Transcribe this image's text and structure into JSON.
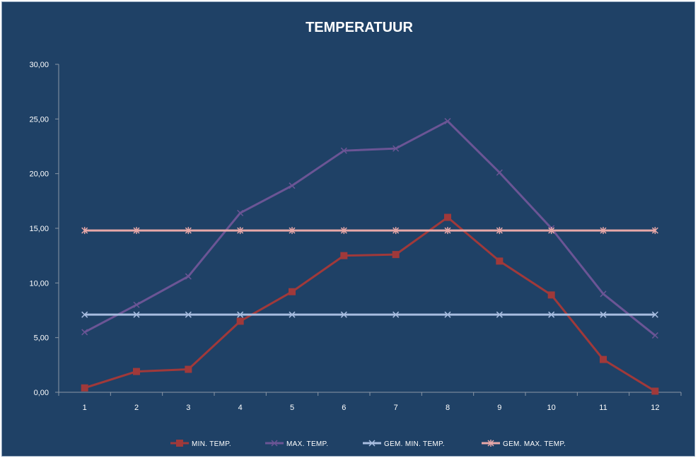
{
  "chart_data": {
    "type": "line",
    "title": "TEMPERATUUR",
    "x": [
      1,
      2,
      3,
      4,
      5,
      6,
      7,
      8,
      9,
      10,
      11,
      12
    ],
    "x_tick_labels": [
      "1",
      "2",
      "3",
      "4",
      "5",
      "6",
      "7",
      "8",
      "9",
      "10",
      "11",
      "12"
    ],
    "ylim": [
      0,
      30
    ],
    "y_tick_labels": [
      "0,00",
      "5,00",
      "10,00",
      "15,00",
      "20,00",
      "25,00",
      "30,00"
    ],
    "y_ticks": [
      0,
      5,
      10,
      15,
      20,
      25,
      30
    ],
    "grid": false,
    "legend_position": "bottom",
    "series": [
      {
        "name": "MIN. TEMP.",
        "color": "#a0393a",
        "marker": "square",
        "values": [
          0.4,
          1.9,
          2.1,
          6.5,
          9.2,
          12.5,
          12.6,
          16.0,
          12.0,
          8.9,
          3.0,
          0.1
        ]
      },
      {
        "name": "MAX. TEMP.",
        "color": "#6b5595",
        "marker": "x",
        "values": [
          5.5,
          8.0,
          10.6,
          16.4,
          18.9,
          22.1,
          22.3,
          24.8,
          20.1,
          15.0,
          9.0,
          5.2
        ]
      },
      {
        "name": "GEM. MIN. TEMP.",
        "color": "#a8bde0",
        "marker": "x",
        "values": [
          7.1,
          7.1,
          7.1,
          7.1,
          7.1,
          7.1,
          7.1,
          7.1,
          7.1,
          7.1,
          7.1,
          7.1
        ]
      },
      {
        "name": "GEM. MAX. TEMP.",
        "color": "#e8a8a8",
        "marker": "star",
        "values": [
          14.8,
          14.8,
          14.8,
          14.8,
          14.8,
          14.8,
          14.8,
          14.8,
          14.8,
          14.8,
          14.8,
          14.8
        ]
      }
    ]
  }
}
